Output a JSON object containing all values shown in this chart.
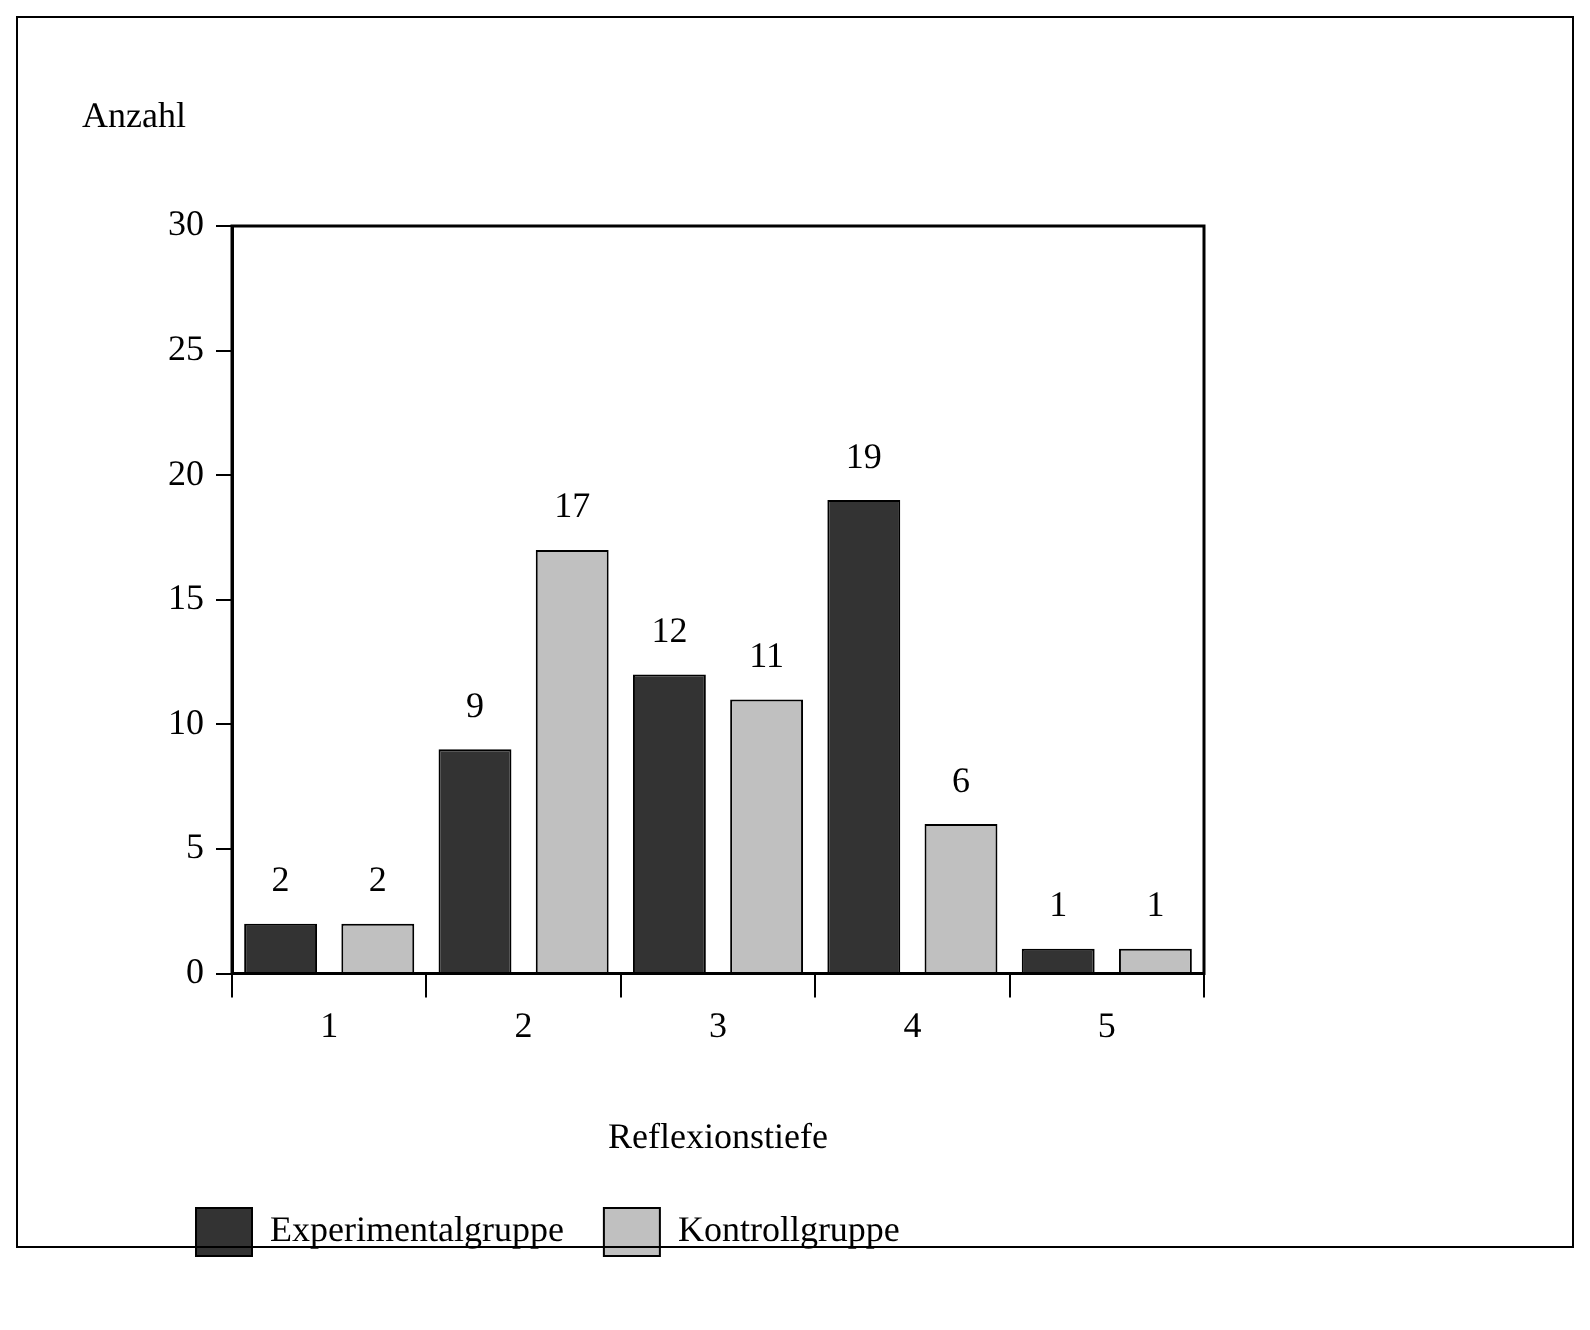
{
  "chart_data": {
    "type": "bar",
    "xlabel": "Reflexionstiefe",
    "ylabel": "Anzahl",
    "categories": [
      "1",
      "2",
      "3",
      "4",
      "5"
    ],
    "series": [
      {
        "name": "Experimentalgruppe",
        "color": "#333333",
        "values": [
          2,
          9,
          12,
          19,
          1
        ]
      },
      {
        "name": "Kontrollgruppe",
        "color": "#c0c0c0",
        "values": [
          2,
          17,
          11,
          6,
          1
        ]
      }
    ],
    "ylim": [
      0,
      30
    ],
    "yticks": [
      0,
      5,
      10,
      15,
      20,
      25,
      30
    ],
    "grid": false,
    "legend": "bottom left",
    "data_labels": true
  }
}
